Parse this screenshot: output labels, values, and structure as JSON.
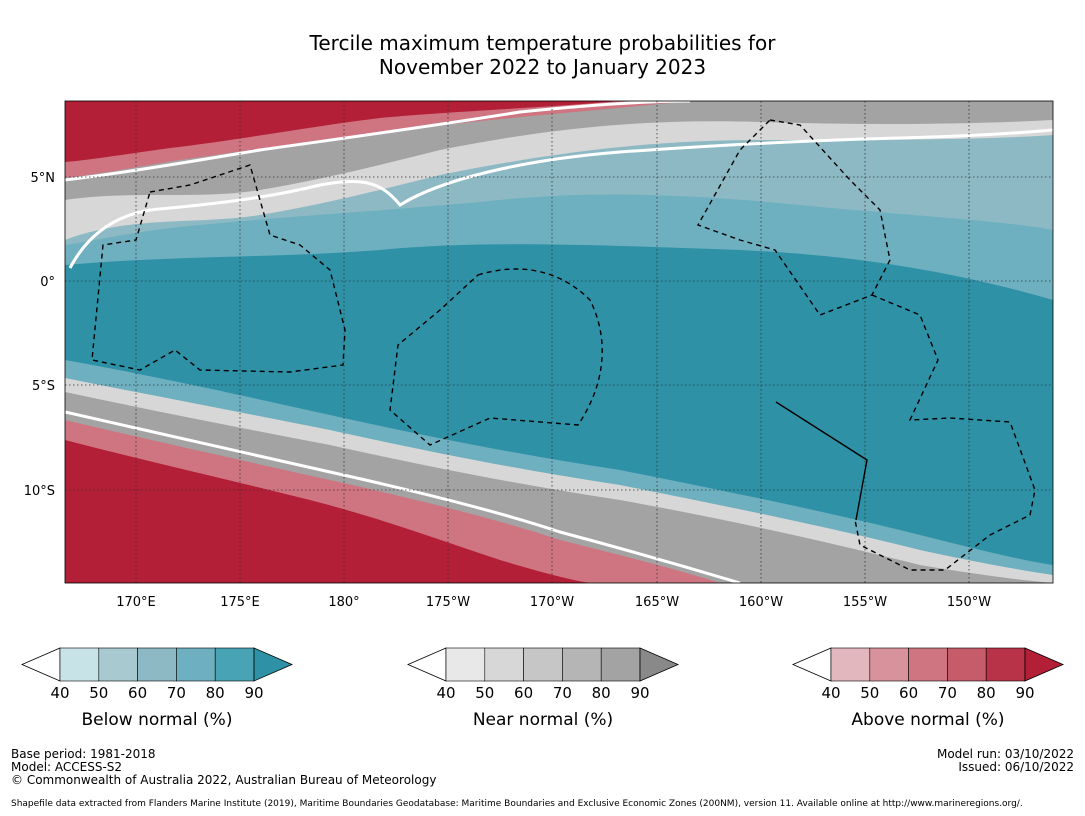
{
  "title": {
    "line1": "Tercile maximum temperature probabilities for",
    "line2": "November 2022 to January 2023"
  },
  "map": {
    "lon_labels": [
      "170°E",
      "175°E",
      "180°",
      "175°W",
      "170°W",
      "165°W",
      "160°W",
      "155°W",
      "150°W"
    ],
    "lat_labels": [
      "5°N",
      "0°",
      "5°S",
      "10°S"
    ],
    "colors": {
      "below_dominant": "#2e91a6",
      "above_dominant": "#b21f36",
      "near_band": "#a3a3a3"
    }
  },
  "colorbars": [
    {
      "title": "Below normal (%)",
      "ticks": [
        "40",
        "50",
        "60",
        "70",
        "80",
        "90"
      ],
      "colors": [
        "#ffffff",
        "#c7e3e8",
        "#a7c9cf",
        "#8db9c4",
        "#6eb0bf",
        "#48a3b4",
        "#2e91a6"
      ]
    },
    {
      "title": "Near normal (%)",
      "ticks": [
        "40",
        "50",
        "60",
        "70",
        "80",
        "90"
      ],
      "colors": [
        "#ffffff",
        "#e8e8e8",
        "#d7d7d7",
        "#c6c6c6",
        "#b5b5b5",
        "#a3a3a3",
        "#898989"
      ]
    },
    {
      "title": "Above normal (%)",
      "ticks": [
        "40",
        "50",
        "60",
        "70",
        "80",
        "90"
      ],
      "colors": [
        "#ffffff",
        "#e2b8be",
        "#d8929b",
        "#cf7581",
        "#c65b69",
        "#b93348",
        "#b21f36"
      ]
    }
  ],
  "footer": {
    "base_period": "Base period: 1981-2018",
    "model": "Model: ACCESS-S2",
    "copyright": "© Commonwealth of Australia 2022, Australian Bureau of Meteorology",
    "model_run": "Model run: 03/10/2022",
    "issued": "Issued: 06/10/2022",
    "shapefile": "Shapefile data extracted from Flanders Marine Institute (2019), Maritime Boundaries Geodatabase: Maritime Boundaries and Exclusive Economic Zones (200NM), version 11. Available online at http://www.marineregions.org/."
  }
}
